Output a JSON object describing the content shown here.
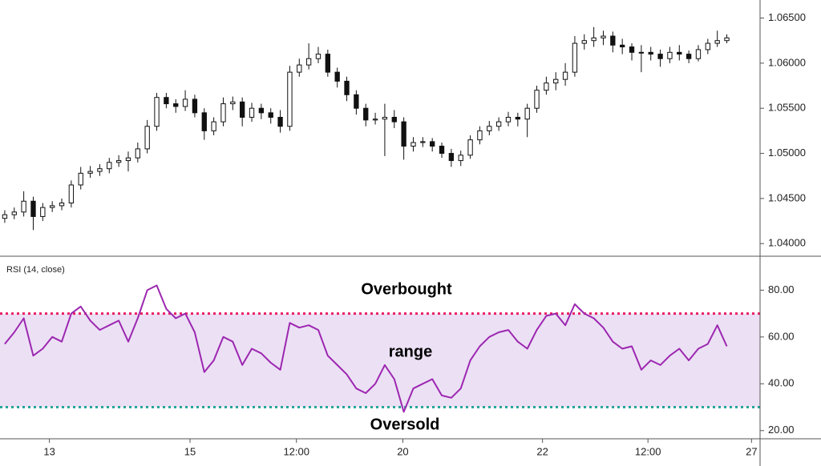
{
  "chart_data": [
    {
      "type": "candlestick",
      "x": [
        0,
        1,
        2,
        3,
        4,
        5,
        6,
        7,
        8,
        9,
        10,
        11,
        12,
        13,
        14,
        15,
        16,
        17,
        18,
        19,
        20,
        21,
        22,
        23,
        24,
        25,
        26,
        27,
        28,
        29,
        30,
        31,
        32,
        33,
        34,
        35,
        36,
        37,
        38,
        39,
        40,
        41,
        42,
        43,
        44,
        45,
        46,
        47,
        48,
        49,
        50,
        51,
        52,
        53,
        54,
        55,
        56,
        57,
        58,
        59,
        60,
        61,
        62,
        63,
        64,
        65,
        66,
        67,
        68,
        69,
        70,
        71,
        72,
        73,
        74,
        75,
        76
      ],
      "open": [
        1.0428,
        1.0432,
        1.0435,
        1.0447,
        1.043,
        1.044,
        1.0442,
        1.0445,
        1.0465,
        1.0478,
        1.048,
        1.0483,
        1.049,
        1.0492,
        1.0495,
        1.0505,
        1.053,
        1.0562,
        1.0555,
        1.0552,
        1.056,
        1.0545,
        1.0525,
        1.0535,
        1.0555,
        1.0557,
        1.054,
        1.055,
        1.0545,
        1.054,
        1.053,
        1.059,
        1.0598,
        1.0605,
        1.061,
        1.059,
        1.058,
        1.0565,
        1.055,
        1.0537,
        1.0538,
        1.054,
        1.0535,
        1.0508,
        1.0512,
        1.0513,
        1.0508,
        1.05,
        1.0492,
        1.0498,
        1.0515,
        1.0525,
        1.053,
        1.0535,
        1.054,
        1.0538,
        1.055,
        1.057,
        1.0578,
        1.0582,
        1.059,
        1.0622,
        1.0625,
        1.0628,
        1.063,
        1.062,
        1.0618,
        1.0612,
        1.0612,
        1.061,
        1.0605,
        1.0612,
        1.061,
        1.0605,
        1.0615,
        1.0622,
        1.0625
      ],
      "high": [
        1.0437,
        1.044,
        1.0458,
        1.0452,
        1.0445,
        1.0447,
        1.045,
        1.047,
        1.0485,
        1.0486,
        1.0488,
        1.0495,
        1.0498,
        1.0502,
        1.0512,
        1.0537,
        1.0567,
        1.0567,
        1.056,
        1.057,
        1.0565,
        1.055,
        1.054,
        1.0562,
        1.0563,
        1.0562,
        1.0556,
        1.0555,
        1.055,
        1.0548,
        1.0597,
        1.0605,
        1.0622,
        1.0618,
        1.0615,
        1.0595,
        1.0585,
        1.057,
        1.0555,
        1.0545,
        1.0555,
        1.0548,
        1.054,
        1.0518,
        1.0518,
        1.0517,
        1.0512,
        1.0505,
        1.0503,
        1.052,
        1.053,
        1.0536,
        1.054,
        1.0546,
        1.0545,
        1.0555,
        1.0575,
        1.0585,
        1.059,
        1.06,
        1.063,
        1.0632,
        1.064,
        1.0636,
        1.0635,
        1.0627,
        1.0622,
        1.062,
        1.0618,
        1.0615,
        1.0618,
        1.062,
        1.0614,
        1.062,
        1.0627,
        1.0636,
        1.0632
      ],
      "low": [
        1.0423,
        1.0427,
        1.043,
        1.0415,
        1.0425,
        1.0435,
        1.0437,
        1.044,
        1.046,
        1.0473,
        1.0475,
        1.0478,
        1.0485,
        1.048,
        1.049,
        1.05,
        1.0525,
        1.055,
        1.0545,
        1.0547,
        1.054,
        1.0515,
        1.052,
        1.053,
        1.0548,
        1.053,
        1.0535,
        1.0538,
        1.0533,
        1.0523,
        1.0525,
        1.0585,
        1.0593,
        1.06,
        1.0585,
        1.0573,
        1.0558,
        1.0543,
        1.053,
        1.0532,
        1.0497,
        1.0528,
        1.0493,
        1.0502,
        1.0507,
        1.0502,
        1.0495,
        1.0485,
        1.0486,
        1.0494,
        1.051,
        1.052,
        1.0525,
        1.053,
        1.053,
        1.0518,
        1.0545,
        1.0565,
        1.057,
        1.0575,
        1.0585,
        1.0615,
        1.0618,
        1.062,
        1.0612,
        1.061,
        1.0603,
        1.059,
        1.0603,
        1.0596,
        1.06,
        1.0603,
        1.06,
        1.0602,
        1.061,
        1.0618,
        1.0622
      ],
      "close": [
        1.0432,
        1.0435,
        1.0447,
        1.043,
        1.044,
        1.0442,
        1.0445,
        1.0465,
        1.0478,
        1.048,
        1.0483,
        1.049,
        1.0492,
        1.0495,
        1.0505,
        1.053,
        1.0562,
        1.0555,
        1.0552,
        1.056,
        1.0545,
        1.0525,
        1.0535,
        1.0555,
        1.0557,
        1.054,
        1.055,
        1.0545,
        1.054,
        1.053,
        1.059,
        1.0598,
        1.0605,
        1.061,
        1.059,
        1.058,
        1.0565,
        1.055,
        1.0537,
        1.0538,
        1.054,
        1.0535,
        1.0508,
        1.0512,
        1.0513,
        1.0508,
        1.05,
        1.0492,
        1.0498,
        1.0515,
        1.0525,
        1.053,
        1.0535,
        1.054,
        1.0538,
        1.055,
        1.057,
        1.0578,
        1.0582,
        1.059,
        1.0622,
        1.0625,
        1.0628,
        1.063,
        1.062,
        1.0618,
        1.0612,
        1.0612,
        1.061,
        1.0605,
        1.0612,
        1.061,
        1.0605,
        1.0615,
        1.0622,
        1.0625,
        1.0628
      ],
      "color": "#111111",
      "xlim": [
        -0.5,
        79.5
      ],
      "ylim": [
        1.0386,
        1.067
      ],
      "yticks": [
        {
          "value": 1.04,
          "label": "1.04000"
        },
        {
          "value": 1.045,
          "label": "1.04500"
        },
        {
          "value": 1.05,
          "label": "1.05000"
        },
        {
          "value": 1.055,
          "label": "1.05500"
        },
        {
          "value": 1.06,
          "label": "1.06000"
        },
        {
          "value": 1.065,
          "label": "1.06500"
        }
      ]
    },
    {
      "type": "line",
      "title": "RSI (14, close)",
      "x": [
        0,
        1,
        2,
        3,
        4,
        5,
        6,
        7,
        8,
        9,
        10,
        11,
        12,
        13,
        14,
        15,
        16,
        17,
        18,
        19,
        20,
        21,
        22,
        23,
        24,
        25,
        26,
        27,
        28,
        29,
        30,
        31,
        32,
        33,
        34,
        35,
        36,
        37,
        38,
        39,
        40,
        41,
        42,
        43,
        44,
        45,
        46,
        47,
        48,
        49,
        50,
        51,
        52,
        53,
        54,
        55,
        56,
        57,
        58,
        59,
        60,
        61,
        62,
        63,
        64,
        65,
        66,
        67,
        68,
        69,
        70,
        71,
        72,
        73,
        74,
        75,
        76
      ],
      "values": [
        57,
        62,
        68,
        52,
        55,
        60,
        58,
        70,
        73,
        67,
        63,
        65,
        67,
        58,
        68,
        80,
        82,
        72,
        68,
        70,
        62,
        45,
        50,
        60,
        58,
        48,
        55,
        53,
        49,
        46,
        66,
        64,
        65,
        63,
        52,
        48,
        44,
        38,
        36,
        40,
        48,
        42,
        28,
        38,
        40,
        42,
        35,
        34,
        38,
        50,
        56,
        60,
        62,
        63,
        58,
        55,
        63,
        69,
        70,
        65,
        74,
        70,
        68,
        64,
        58,
        55,
        56,
        46,
        50,
        48,
        52,
        55,
        50,
        55,
        57,
        65,
        56
      ],
      "color": "#9c27b0",
      "levels": {
        "overbought": 70,
        "oversold": 30,
        "overbought_color": "#e91e63",
        "oversold_color": "#26a69a",
        "band_color": "#ece0f5"
      },
      "annotations": {
        "overbought": "Overbought",
        "range": "range",
        "oversold": "Oversold"
      },
      "xlim": [
        -0.5,
        79.5
      ],
      "ylim": [
        16.5,
        94.5
      ],
      "yticks": [
        {
          "value": 20,
          "label": "20.00"
        },
        {
          "value": 40,
          "label": "40.00"
        },
        {
          "value": 60,
          "label": "60.00"
        },
        {
          "value": 80,
          "label": "80.00"
        }
      ],
      "xticks": [
        {
          "value": 4.7,
          "label": "13"
        },
        {
          "value": 19.5,
          "label": "15"
        },
        {
          "value": 30.7,
          "label": "12:00"
        },
        {
          "value": 41.9,
          "label": "20"
        },
        {
          "value": 56.6,
          "label": "22"
        },
        {
          "value": 67.7,
          "label": "12:00"
        },
        {
          "value": 78.6,
          "label": "27"
        }
      ]
    }
  ]
}
